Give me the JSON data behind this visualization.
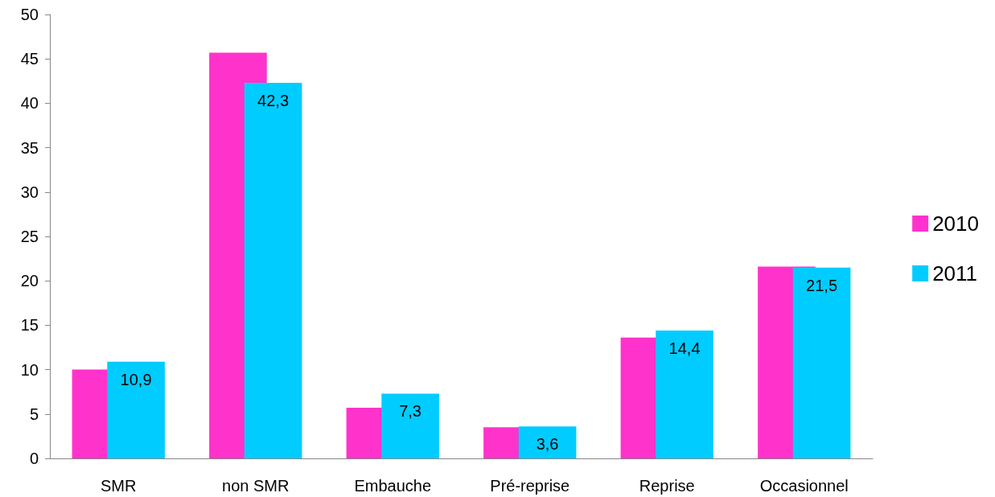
{
  "chart_data": {
    "type": "bar",
    "categories": [
      "SMR",
      "non SMR",
      "Embauche",
      "Pré-reprise",
      "Reprise",
      "Occasionnel"
    ],
    "series": [
      {
        "name": "2010",
        "color": "#ff33cc",
        "values": [
          10.0,
          45.7,
          5.7,
          3.5,
          13.6,
          21.6
        ]
      },
      {
        "name": "2011",
        "color": "#00ccff",
        "values": [
          10.9,
          42.3,
          7.3,
          3.6,
          14.4,
          21.5
        ],
        "value_labels": [
          "10,9",
          "42,3",
          "7,3",
          "3,6",
          "14,4",
          "21,5"
        ]
      }
    ],
    "ylim": [
      0,
      50
    ],
    "yticks": [
      0,
      5,
      10,
      15,
      20,
      25,
      30,
      35,
      40,
      45,
      50
    ],
    "grid": false,
    "legend": "right"
  }
}
